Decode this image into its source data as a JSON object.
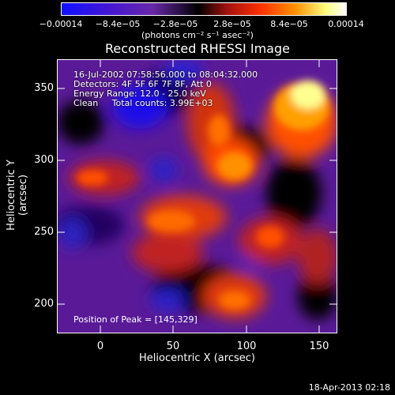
{
  "colorbar": {
    "ticks": [
      "−0.00014",
      "−8.4e−05",
      "−2.8e−05",
      "2.8e−05",
      "8.4e−05",
      "0.00014"
    ],
    "units": "(photons cm⁻² s⁻¹ asec⁻²)",
    "colors": [
      "#1010ff",
      "#5010c0",
      "#7030a0",
      "#000000",
      "#a01010",
      "#ff3000",
      "#ff9000",
      "#ffff80",
      "#ffffff"
    ]
  },
  "image": {
    "title": "Reconstructed RHESSI Image",
    "time_range": "16-Jul-2002 07:58:56.000 to 08:04:32.000",
    "detectors": "Detectors: 4F 5F 6F 7F 8F, Att 0",
    "energy_range": "Energy Range: 12.0 - 25.0 keV",
    "clean_info": "Clean     Total counts: 3.99E+03",
    "peak_position": "Position of Peak = [145,329]"
  },
  "axes": {
    "x_title": "Heliocentric X (arcsec)",
    "y_title": "Heliocentric Y (arcsec)",
    "x_ticks": [
      "0",
      "50",
      "100",
      "150"
    ],
    "y_ticks": [
      "350",
      "300",
      "250",
      "200"
    ]
  },
  "footer": {
    "timestamp": "18-Apr-2013 02:18"
  }
}
